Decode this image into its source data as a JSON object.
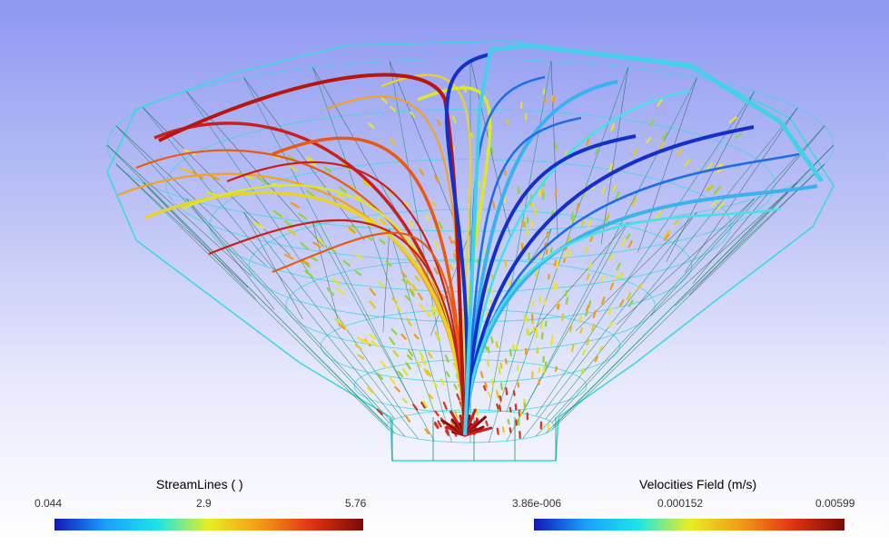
{
  "legends": {
    "streamlines": {
      "title": "StreamLines ( )",
      "ticks": [
        "0.044",
        "2.9",
        "5.76"
      ],
      "colors": [
        "#1018b8",
        "#1aa0ff",
        "#19e6e6",
        "#e8ee22",
        "#f39a16",
        "#e23212",
        "#7a0a08"
      ]
    },
    "velocities": {
      "title": "Velocities Field (m/s)",
      "ticks": [
        "3.86e-006",
        "0.000152",
        "0.00599"
      ],
      "colors": [
        "#1018b8",
        "#1aa0ff",
        "#19e6e6",
        "#e8ee22",
        "#f39a16",
        "#e23212",
        "#7a0a08"
      ]
    }
  },
  "scene": {
    "mesh_color": "#1a8f6f",
    "outline_color": "#40d6e0",
    "left_stream_colors": [
      "#c8201a",
      "#e85a14",
      "#f1a126",
      "#e9d22a",
      "#d9e82a"
    ],
    "right_stream_colors": [
      "#1430c8",
      "#1e6ee8",
      "#3ab2f0",
      "#48e0e8"
    ]
  }
}
